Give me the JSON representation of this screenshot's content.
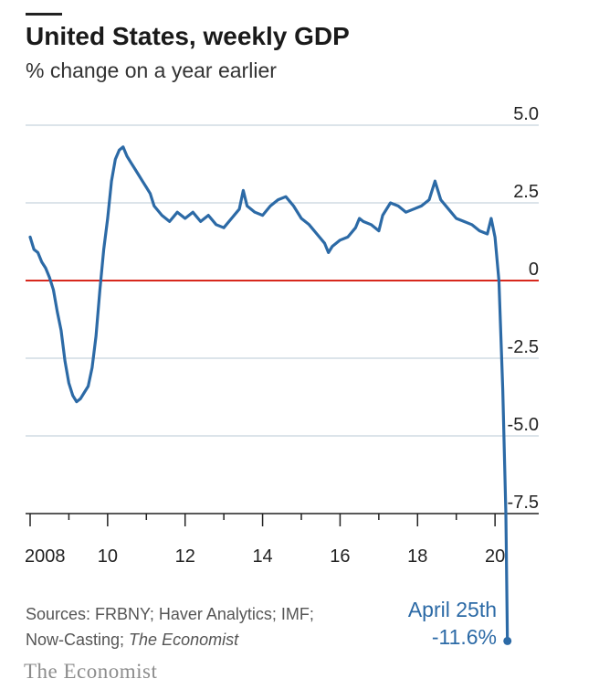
{
  "header": {
    "title": "United States, weekly GDP",
    "subtitle": "% change on a year earlier"
  },
  "footer": {
    "source_prefix": "Sources: FRBNY; Haver Analytics; IMF;",
    "source_line2_prefix": "Now-Casting; ",
    "source_line2_italic": "The Economist",
    "brand": "The Economist"
  },
  "annotation": {
    "date": "April 25th",
    "value": "-11.6%"
  },
  "colors": {
    "line": "#2c6aa6",
    "zero": "#d7281d",
    "grid": "#b8c9d6",
    "axis": "#222222"
  },
  "chart_data": {
    "type": "line",
    "title": "United States, weekly GDP",
    "subtitle": "% change on a year earlier",
    "xlabel": "",
    "ylabel": "",
    "ylim": [
      -7.5,
      5.0
    ],
    "xlim": [
      2008.0,
      2020.35
    ],
    "yticks": [
      5.0,
      2.5,
      0,
      -2.5,
      -5.0,
      -7.5
    ],
    "ytick_labels": [
      "5.0",
      "2.5",
      "0",
      "-2.5",
      "-5.0",
      "-7.5"
    ],
    "xticks": [
      2008,
      2010,
      2012,
      2014,
      2016,
      2018,
      2020
    ],
    "xtick_labels": [
      "2008",
      "10",
      "12",
      "14",
      "16",
      "18",
      "20"
    ],
    "series": [
      {
        "name": "Weekly GDP, % change on a year earlier",
        "points": [
          [
            2008.0,
            1.4
          ],
          [
            2008.1,
            1.0
          ],
          [
            2008.2,
            0.9
          ],
          [
            2008.3,
            0.6
          ],
          [
            2008.4,
            0.4
          ],
          [
            2008.5,
            0.1
          ],
          [
            2008.6,
            -0.3
          ],
          [
            2008.7,
            -1.0
          ],
          [
            2008.8,
            -1.6
          ],
          [
            2008.9,
            -2.6
          ],
          [
            2009.0,
            -3.3
          ],
          [
            2009.1,
            -3.7
          ],
          [
            2009.2,
            -3.9
          ],
          [
            2009.3,
            -3.8
          ],
          [
            2009.4,
            -3.6
          ],
          [
            2009.5,
            -3.4
          ],
          [
            2009.6,
            -2.8
          ],
          [
            2009.7,
            -1.8
          ],
          [
            2009.8,
            -0.3
          ],
          [
            2009.9,
            1.0
          ],
          [
            2010.0,
            2.0
          ],
          [
            2010.1,
            3.2
          ],
          [
            2010.2,
            3.9
          ],
          [
            2010.3,
            4.2
          ],
          [
            2010.4,
            4.3
          ],
          [
            2010.5,
            4.0
          ],
          [
            2010.6,
            3.8
          ],
          [
            2010.7,
            3.6
          ],
          [
            2010.8,
            3.4
          ],
          [
            2010.9,
            3.2
          ],
          [
            2011.0,
            3.0
          ],
          [
            2011.1,
            2.8
          ],
          [
            2011.2,
            2.4
          ],
          [
            2011.4,
            2.1
          ],
          [
            2011.6,
            1.9
          ],
          [
            2011.8,
            2.2
          ],
          [
            2012.0,
            2.0
          ],
          [
            2012.2,
            2.2
          ],
          [
            2012.4,
            1.9
          ],
          [
            2012.6,
            2.1
          ],
          [
            2012.8,
            1.8
          ],
          [
            2013.0,
            1.7
          ],
          [
            2013.2,
            2.0
          ],
          [
            2013.4,
            2.3
          ],
          [
            2013.5,
            2.9
          ],
          [
            2013.6,
            2.4
          ],
          [
            2013.8,
            2.2
          ],
          [
            2014.0,
            2.1
          ],
          [
            2014.2,
            2.4
          ],
          [
            2014.4,
            2.6
          ],
          [
            2014.6,
            2.7
          ],
          [
            2014.8,
            2.4
          ],
          [
            2015.0,
            2.0
          ],
          [
            2015.2,
            1.8
          ],
          [
            2015.4,
            1.5
          ],
          [
            2015.6,
            1.2
          ],
          [
            2015.7,
            0.9
          ],
          [
            2015.8,
            1.1
          ],
          [
            2016.0,
            1.3
          ],
          [
            2016.2,
            1.4
          ],
          [
            2016.4,
            1.7
          ],
          [
            2016.5,
            2.0
          ],
          [
            2016.6,
            1.9
          ],
          [
            2016.8,
            1.8
          ],
          [
            2017.0,
            1.6
          ],
          [
            2017.1,
            2.1
          ],
          [
            2017.3,
            2.5
          ],
          [
            2017.5,
            2.4
          ],
          [
            2017.7,
            2.2
          ],
          [
            2017.9,
            2.3
          ],
          [
            2018.1,
            2.4
          ],
          [
            2018.3,
            2.6
          ],
          [
            2018.45,
            3.2
          ],
          [
            2018.6,
            2.6
          ],
          [
            2018.8,
            2.3
          ],
          [
            2019.0,
            2.0
          ],
          [
            2019.2,
            1.9
          ],
          [
            2019.4,
            1.8
          ],
          [
            2019.6,
            1.6
          ],
          [
            2019.8,
            1.5
          ],
          [
            2019.9,
            2.0
          ],
          [
            2020.0,
            1.4
          ],
          [
            2020.1,
            0.0
          ],
          [
            2020.2,
            -3.5
          ],
          [
            2020.28,
            -7.5
          ],
          [
            2020.32,
            -11.6
          ]
        ]
      }
    ],
    "annotations": [
      {
        "text": "April 25th -11.6%",
        "x": 2020.32,
        "y": -11.6
      }
    ]
  }
}
